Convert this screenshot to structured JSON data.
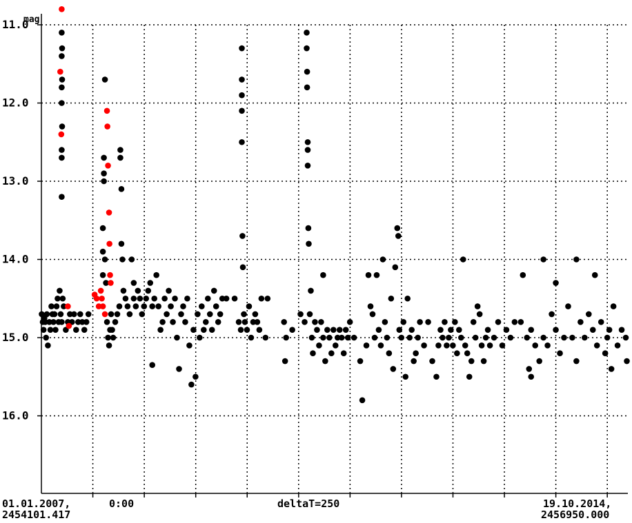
{
  "chart_data": {
    "type": "scatter",
    "ylabel": "mag",
    "y_inverted": true,
    "ylim": [
      17.0,
      11.0
    ],
    "xlim": [
      2454101.417,
      2456950.0
    ],
    "ytick_labels": [
      "11.0",
      "12.0",
      "13.0",
      "14.0",
      "15.0",
      "16.0"
    ],
    "x_start_label": [
      "01.01.2007,",
      "2454101.417"
    ],
    "x_end_label": [
      "19.10.2014,",
      "2456950.000"
    ],
    "x_mid_label": "0:00",
    "x_center_label": "deltaT=250",
    "grid": true,
    "colors": {
      "observed": "#000000",
      "highlight": "#ff0000",
      "grid": "#000000"
    },
    "series": [
      {
        "color": "#000000",
        "points": [
          [
            2454103,
            14.7
          ],
          [
            2454108,
            14.8
          ],
          [
            2454112,
            14.9
          ],
          [
            2454116,
            14.75
          ],
          [
            2454120,
            14.8
          ],
          [
            2454124,
            15.0
          ],
          [
            2454128,
            14.7
          ],
          [
            2454133,
            15.1
          ],
          [
            2454140,
            14.8
          ],
          [
            2454145,
            14.9
          ],
          [
            2454150,
            14.6
          ],
          [
            2454155,
            14.7
          ],
          [
            2454160,
            14.8
          ],
          [
            2454165,
            14.7
          ],
          [
            2454170,
            14.9
          ],
          [
            2454175,
            14.6
          ],
          [
            2454180,
            14.5
          ],
          [
            2454185,
            14.8
          ],
          [
            2454190,
            14.4
          ],
          [
            2454195,
            14.7
          ],
          [
            2454200,
            14.8
          ],
          [
            2454205,
            14.5
          ],
          [
            2454210,
            14.6
          ],
          [
            2454220,
            14.9
          ],
          [
            2454230,
            14.8
          ],
          [
            2454240,
            14.7
          ],
          [
            2454250,
            14.8
          ],
          [
            2454260,
            14.7
          ],
          [
            2454270,
            14.9
          ],
          [
            2454280,
            14.8
          ],
          [
            2454290,
            14.7
          ],
          [
            2454300,
            14.8
          ],
          [
            2454310,
            14.9
          ],
          [
            2454320,
            14.8
          ],
          [
            2454330,
            14.7
          ],
          [
            2454200,
            11.1
          ],
          [
            2454200,
            11.4
          ],
          [
            2454200,
            11.8
          ],
          [
            2454200,
            12.0
          ],
          [
            2454200,
            12.6
          ],
          [
            2454200,
            12.7
          ],
          [
            2454200,
            13.2
          ],
          [
            2454202,
            11.3
          ],
          [
            2454202,
            11.7
          ],
          [
            2454202,
            12.3
          ],
          [
            2454400,
            13.6
          ],
          [
            2454400,
            13.9
          ],
          [
            2454400,
            14.2
          ],
          [
            2454405,
            13.0
          ],
          [
            2454405,
            12.7
          ],
          [
            2454405,
            12.9
          ],
          [
            2454410,
            11.7
          ],
          [
            2454410,
            14.0
          ],
          [
            2454415,
            14.3
          ],
          [
            2454420,
            14.8
          ],
          [
            2454425,
            15.0
          ],
          [
            2454430,
            15.1
          ],
          [
            2454435,
            14.9
          ],
          [
            2454440,
            14.7
          ],
          [
            2454445,
            14.9
          ],
          [
            2454450,
            15.0
          ],
          [
            2454460,
            14.8
          ],
          [
            2454470,
            14.7
          ],
          [
            2454480,
            14.6
          ],
          [
            2454485,
            12.6
          ],
          [
            2454485,
            12.7
          ],
          [
            2454490,
            13.1
          ],
          [
            2454490,
            13.8
          ],
          [
            2454495,
            14.0
          ],
          [
            2454500,
            14.4
          ],
          [
            2454510,
            14.5
          ],
          [
            2454520,
            14.6
          ],
          [
            2454530,
            14.7
          ],
          [
            2454540,
            14.0
          ],
          [
            2454550,
            14.5
          ],
          [
            2454560,
            14.6
          ],
          [
            2454570,
            14.4
          ],
          [
            2454580,
            14.5
          ],
          [
            2454590,
            14.7
          ],
          [
            2454600,
            14.6
          ],
          [
            2454610,
            14.5
          ],
          [
            2454620,
            14.4
          ],
          [
            2454630,
            14.3
          ],
          [
            2454640,
            14.6
          ],
          [
            2454650,
            14.5
          ],
          [
            2454660,
            14.2
          ],
          [
            2454670,
            14.6
          ],
          [
            2454680,
            14.9
          ],
          [
            2454690,
            14.8
          ],
          [
            2454700,
            14.5
          ],
          [
            2454710,
            14.7
          ],
          [
            2454720,
            14.4
          ],
          [
            2454730,
            14.6
          ],
          [
            2454740,
            14.8
          ],
          [
            2454750,
            14.5
          ],
          [
            2454760,
            15.0
          ],
          [
            2454770,
            15.4
          ],
          [
            2454780,
            14.7
          ],
          [
            2454790,
            14.6
          ],
          [
            2454800,
            14.8
          ],
          [
            2454810,
            14.5
          ],
          [
            2454820,
            15.1
          ],
          [
            2454830,
            15.6
          ],
          [
            2454840,
            14.9
          ],
          [
            2454850,
            15.5
          ],
          [
            2454860,
            14.7
          ],
          [
            2454870,
            15.0
          ],
          [
            2454880,
            14.6
          ],
          [
            2454890,
            14.9
          ],
          [
            2454900,
            14.8
          ],
          [
            2454910,
            14.5
          ],
          [
            2454920,
            14.7
          ],
          [
            2454930,
            14.9
          ],
          [
            2454940,
            14.4
          ],
          [
            2454950,
            14.6
          ],
          [
            2454960,
            14.8
          ],
          [
            2454970,
            14.7
          ],
          [
            2454980,
            14.5
          ],
          [
            2455000,
            14.5
          ],
          [
            2454640,
            15.35
          ],
          [
            2454550,
            14.3
          ],
          [
            2455040,
            14.5
          ],
          [
            2455060,
            14.8
          ],
          [
            2455070,
            14.9
          ],
          [
            2455075,
            11.3
          ],
          [
            2455075,
            11.7
          ],
          [
            2455075,
            11.9
          ],
          [
            2455075,
            12.1
          ],
          [
            2455075,
            12.5
          ],
          [
            2455078,
            13.7
          ],
          [
            2455080,
            14.1
          ],
          [
            2455085,
            14.7
          ],
          [
            2455090,
            14.8
          ],
          [
            2455100,
            14.9
          ],
          [
            2455110,
            14.6
          ],
          [
            2455120,
            15.0
          ],
          [
            2455130,
            14.8
          ],
          [
            2455140,
            14.7
          ],
          [
            2455150,
            14.8
          ],
          [
            2455160,
            14.9
          ],
          [
            2455170,
            14.5
          ],
          [
            2455190,
            15.0
          ],
          [
            2455200,
            14.5
          ],
          [
            2455280,
            14.8
          ],
          [
            2455285,
            15.3
          ],
          [
            2455290,
            15.0
          ],
          [
            2455320,
            14.9
          ],
          [
            2455360,
            14.7
          ],
          [
            2455380,
            14.8
          ],
          [
            2455390,
            11.1
          ],
          [
            2455390,
            11.3
          ],
          [
            2455392,
            11.6
          ],
          [
            2455392,
            11.8
          ],
          [
            2455395,
            12.5
          ],
          [
            2455395,
            12.6
          ],
          [
            2455395,
            12.8
          ],
          [
            2455398,
            13.6
          ],
          [
            2455400,
            13.8
          ],
          [
            2455405,
            14.7
          ],
          [
            2455410,
            14.4
          ],
          [
            2455415,
            15.0
          ],
          [
            2455420,
            15.2
          ],
          [
            2455430,
            14.8
          ],
          [
            2455440,
            14.9
          ],
          [
            2455450,
            15.1
          ],
          [
            2455460,
            14.8
          ],
          [
            2455470,
            15.0
          ],
          [
            2455480,
            15.3
          ],
          [
            2455490,
            14.9
          ],
          [
            2455500,
            15.0
          ],
          [
            2455510,
            15.2
          ],
          [
            2455520,
            14.9
          ],
          [
            2455530,
            15.1
          ],
          [
            2455540,
            15.0
          ],
          [
            2455550,
            14.9
          ],
          [
            2455560,
            15.0
          ],
          [
            2455570,
            15.2
          ],
          [
            2455580,
            14.9
          ],
          [
            2455590,
            15.0
          ],
          [
            2455600,
            14.8
          ],
          [
            2455470,
            14.2
          ],
          [
            2455620,
            15.0
          ],
          [
            2455650,
            15.3
          ],
          [
            2455660,
            15.8
          ],
          [
            2455680,
            15.1
          ],
          [
            2455690,
            14.2
          ],
          [
            2455700,
            14.6
          ],
          [
            2455710,
            14.7
          ],
          [
            2455720,
            15.0
          ],
          [
            2455730,
            14.2
          ],
          [
            2455740,
            14.9
          ],
          [
            2455750,
            15.1
          ],
          [
            2455760,
            14.0
          ],
          [
            2455770,
            14.8
          ],
          [
            2455780,
            15.0
          ],
          [
            2455790,
            15.2
          ],
          [
            2455800,
            14.5
          ],
          [
            2455810,
            15.4
          ],
          [
            2455820,
            14.1
          ],
          [
            2455830,
            13.6
          ],
          [
            2455835,
            13.7
          ],
          [
            2455840,
            14.9
          ],
          [
            2455850,
            15.0
          ],
          [
            2455860,
            14.8
          ],
          [
            2455870,
            15.5
          ],
          [
            2455880,
            14.5
          ],
          [
            2455890,
            15.0
          ],
          [
            2455900,
            14.9
          ],
          [
            2455910,
            15.3
          ],
          [
            2455920,
            15.2
          ],
          [
            2455930,
            15.0
          ],
          [
            2455940,
            14.8
          ],
          [
            2455960,
            15.1
          ],
          [
            2455980,
            14.8
          ],
          [
            2456000,
            15.3
          ],
          [
            2456020,
            15.5
          ],
          [
            2456030,
            15.1
          ],
          [
            2456040,
            14.9
          ],
          [
            2456050,
            15.0
          ],
          [
            2456060,
            14.8
          ],
          [
            2456070,
            15.1
          ],
          [
            2456080,
            15.0
          ],
          [
            2456090,
            14.9
          ],
          [
            2456100,
            15.1
          ],
          [
            2456110,
            14.8
          ],
          [
            2456120,
            15.2
          ],
          [
            2456130,
            14.9
          ],
          [
            2456140,
            15.0
          ],
          [
            2456150,
            14.0
          ],
          [
            2456160,
            15.1
          ],
          [
            2456170,
            15.2
          ],
          [
            2456180,
            15.5
          ],
          [
            2456190,
            15.3
          ],
          [
            2456200,
            14.8
          ],
          [
            2456210,
            15.0
          ],
          [
            2456220,
            14.6
          ],
          [
            2456230,
            14.7
          ],
          [
            2456240,
            15.1
          ],
          [
            2456250,
            15.3
          ],
          [
            2456260,
            15.0
          ],
          [
            2456270,
            14.9
          ],
          [
            2456280,
            15.1
          ],
          [
            2456300,
            15.0
          ],
          [
            2456320,
            14.8
          ],
          [
            2456340,
            15.1
          ],
          [
            2456360,
            14.9
          ],
          [
            2456380,
            15.0
          ],
          [
            2456400,
            14.8
          ],
          [
            2456430,
            14.8
          ],
          [
            2456440,
            14.2
          ],
          [
            2456460,
            15.0
          ],
          [
            2456480,
            14.9
          ],
          [
            2456500,
            15.1
          ],
          [
            2456520,
            15.3
          ],
          [
            2456540,
            15.0
          ],
          [
            2456560,
            15.1
          ],
          [
            2456580,
            14.7
          ],
          [
            2456600,
            14.9
          ],
          [
            2456620,
            15.2
          ],
          [
            2456640,
            15.0
          ],
          [
            2456660,
            14.6
          ],
          [
            2456680,
            15.0
          ],
          [
            2456700,
            15.3
          ],
          [
            2456720,
            14.8
          ],
          [
            2456740,
            15.0
          ],
          [
            2456760,
            14.7
          ],
          [
            2456780,
            14.9
          ],
          [
            2456800,
            15.1
          ],
          [
            2456820,
            14.8
          ],
          [
            2456840,
            15.2
          ],
          [
            2456860,
            14.9
          ],
          [
            2456880,
            14.6
          ],
          [
            2456900,
            15.1
          ],
          [
            2456920,
            14.9
          ],
          [
            2456940,
            15.0
          ],
          [
            2456945,
            15.3
          ],
          [
            2456700,
            14.0
          ],
          [
            2456790,
            14.2
          ],
          [
            2456850,
            15.0
          ],
          [
            2456870,
            15.4
          ],
          [
            2456600,
            14.3
          ],
          [
            2456540,
            14.0
          ],
          [
            2456470,
            15.4
          ],
          [
            2456480,
            15.5
          ]
        ]
      },
      {
        "color": "#ff0000",
        "points": [
          [
            2454193,
            11.6
          ],
          [
            2454198,
            12.4
          ],
          [
            2454200,
            10.8
          ],
          [
            2454230,
            14.6
          ],
          [
            2454235,
            14.85
          ],
          [
            2454360,
            14.45
          ],
          [
            2454370,
            14.5
          ],
          [
            2454380,
            14.6
          ],
          [
            2454390,
            14.4
          ],
          [
            2454395,
            14.5
          ],
          [
            2454400,
            14.6
          ],
          [
            2454410,
            14.7
          ],
          [
            2454420,
            12.1
          ],
          [
            2454422,
            12.3
          ],
          [
            2454425,
            12.8
          ],
          [
            2454430,
            13.4
          ],
          [
            2454432,
            13.8
          ],
          [
            2454435,
            14.2
          ],
          [
            2454438,
            14.3
          ]
        ]
      }
    ]
  }
}
